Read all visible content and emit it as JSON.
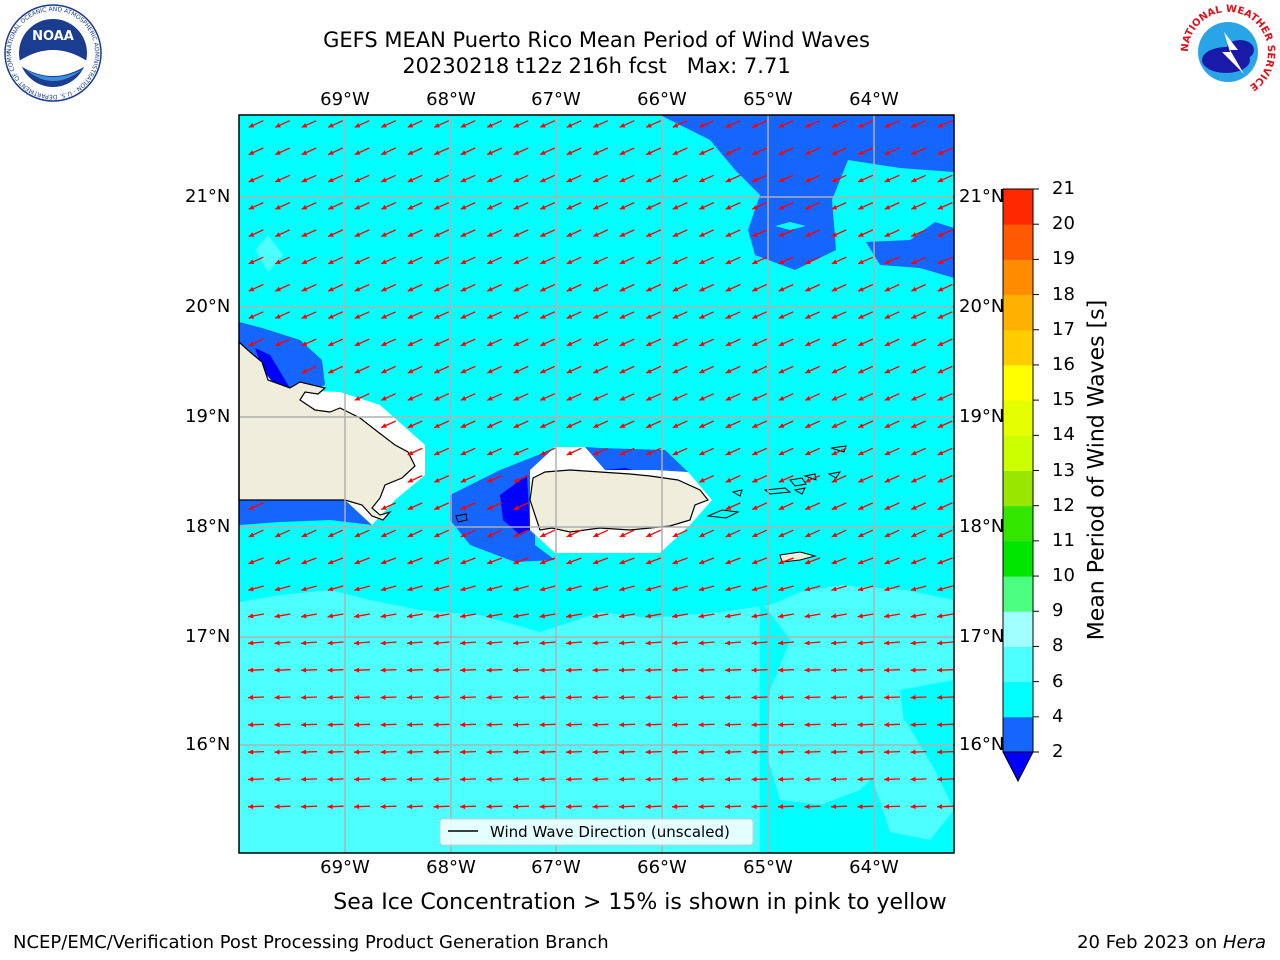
{
  "title": {
    "line1": "GEFS MEAN Puerto Rico Mean Period of Wind Waves",
    "line2": "20230218 t12z 216h fcst",
    "max_text": "Max: 7.71"
  },
  "map": {
    "lon_labels": [
      "69°W",
      "68°W",
      "67°W",
      "66°W",
      "65°W",
      "64°W"
    ],
    "lat_labels": [
      "21°N",
      "20°N",
      "19°N",
      "18°N",
      "17°N",
      "16°N"
    ],
    "legend_label": "Wind Wave Direction (unscaled)",
    "arrow_color": "#ff0000",
    "land_color": "#efeedc",
    "coastline_color": "#000000",
    "grid_color": "#b0b0b0"
  },
  "colorbar": {
    "title": "Mean Period of Wind Waves [s]",
    "tick_labels": [
      "2",
      "4",
      "6",
      "8",
      "9",
      "10",
      "11",
      "12",
      "13",
      "14",
      "15",
      "16",
      "17",
      "18",
      "19",
      "20",
      "21"
    ],
    "colors": [
      "#1565ff",
      "#00ffff",
      "#4dffff",
      "#a0ffff",
      "#4dff80",
      "#00e600",
      "#33e600",
      "#99e600",
      "#ccff00",
      "#e6ff00",
      "#ffff00",
      "#ffcc00",
      "#ffb000",
      "#ff8c00",
      "#ff5a00",
      "#ff2800"
    ],
    "under_color": "#0000ff"
  },
  "caption": "Sea Ice Concentration > 15% is shown in pink to yellow",
  "footer": {
    "left": "NCEP/EMC/Verification Post Processing Product Generation Branch",
    "right_date": "20 Feb 2023 on ",
    "right_host": "Hera"
  },
  "logos": {
    "noaa_text": "NOAA",
    "noaa_ring_text": "NATIONAL OCEANIC AND ATMOSPHERIC ADMINISTRATION · U.S. DEPARTMENT OF COMMERCE",
    "nws_ring_text": "NATIONAL WEATHER SERVICE"
  }
}
